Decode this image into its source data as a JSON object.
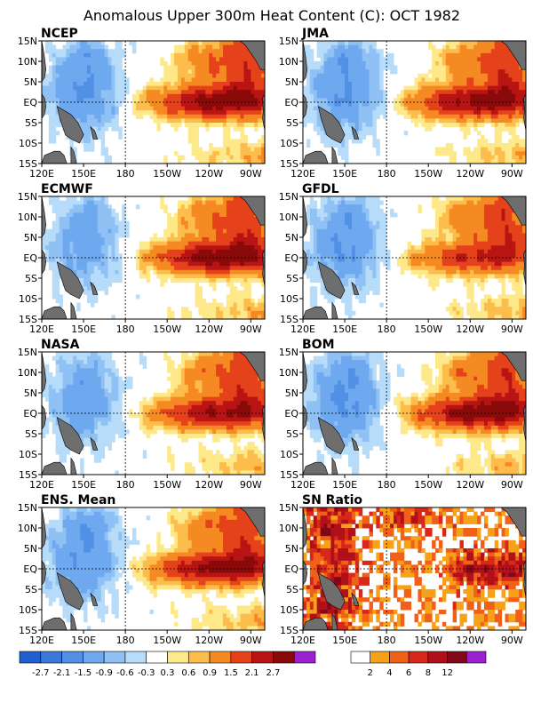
{
  "title": "Anomalous Upper 300m Heat Content (C): OCT 1982",
  "chart_data": {
    "type": "heatmap",
    "x_ticks": [
      "120E",
      "150E",
      "180",
      "150W",
      "120W",
      "90W"
    ],
    "y_ticks": [
      "15N",
      "10N",
      "5N",
      "EQ",
      "5S",
      "10S",
      "15S"
    ],
    "panels": [
      {
        "label": "NCEP",
        "peak": 3.0,
        "west": -1.5,
        "west_north": -2.1
      },
      {
        "label": "JMA",
        "peak": 2.9,
        "west": -1.5,
        "west_north": -2.1
      },
      {
        "label": "ECMWF",
        "peak": 3.0,
        "west": -1.2,
        "west_north": -1.6
      },
      {
        "label": "GFDL",
        "peak": 2.1,
        "west": -1.5,
        "west_north": -1.9
      },
      {
        "label": "NASA",
        "peak": 2.6,
        "west": -1.3,
        "west_north": -1.5
      },
      {
        "label": "BOM",
        "peak": 3.0,
        "west": -1.6,
        "west_north": -2.1
      },
      {
        "label": "ENS. Mean",
        "peak": 2.8,
        "west": -1.5,
        "west_north": -2.1
      },
      {
        "label": "SN Ratio",
        "snr": true
      }
    ],
    "colorbar_anomaly": {
      "labels": [
        "-2.7",
        "-2.1",
        "-1.5",
        "-0.9",
        "-0.6",
        "-0.3",
        "0.3",
        "0.6",
        "0.9",
        "1.5",
        "2.1",
        "2.7"
      ],
      "colors": [
        "#1f5fd0",
        "#3a78dc",
        "#5290e6",
        "#6ea8ee",
        "#8fc1f4",
        "#b7dcf9",
        "#ffffff",
        "#fde88a",
        "#fdbd4c",
        "#f68a22",
        "#e5421c",
        "#b81414",
        "#8a0a0a",
        "#9a20d0"
      ]
    },
    "colorbar_snr": {
      "labels": [
        "2",
        "4",
        "6",
        "8",
        "12"
      ],
      "colors": [
        "#ffffff",
        "#f7a11a",
        "#f06018",
        "#d8281a",
        "#b0101a",
        "#800818",
        "#9a20d0"
      ]
    },
    "colors": {
      "land": "#6e6e6e"
    }
  }
}
